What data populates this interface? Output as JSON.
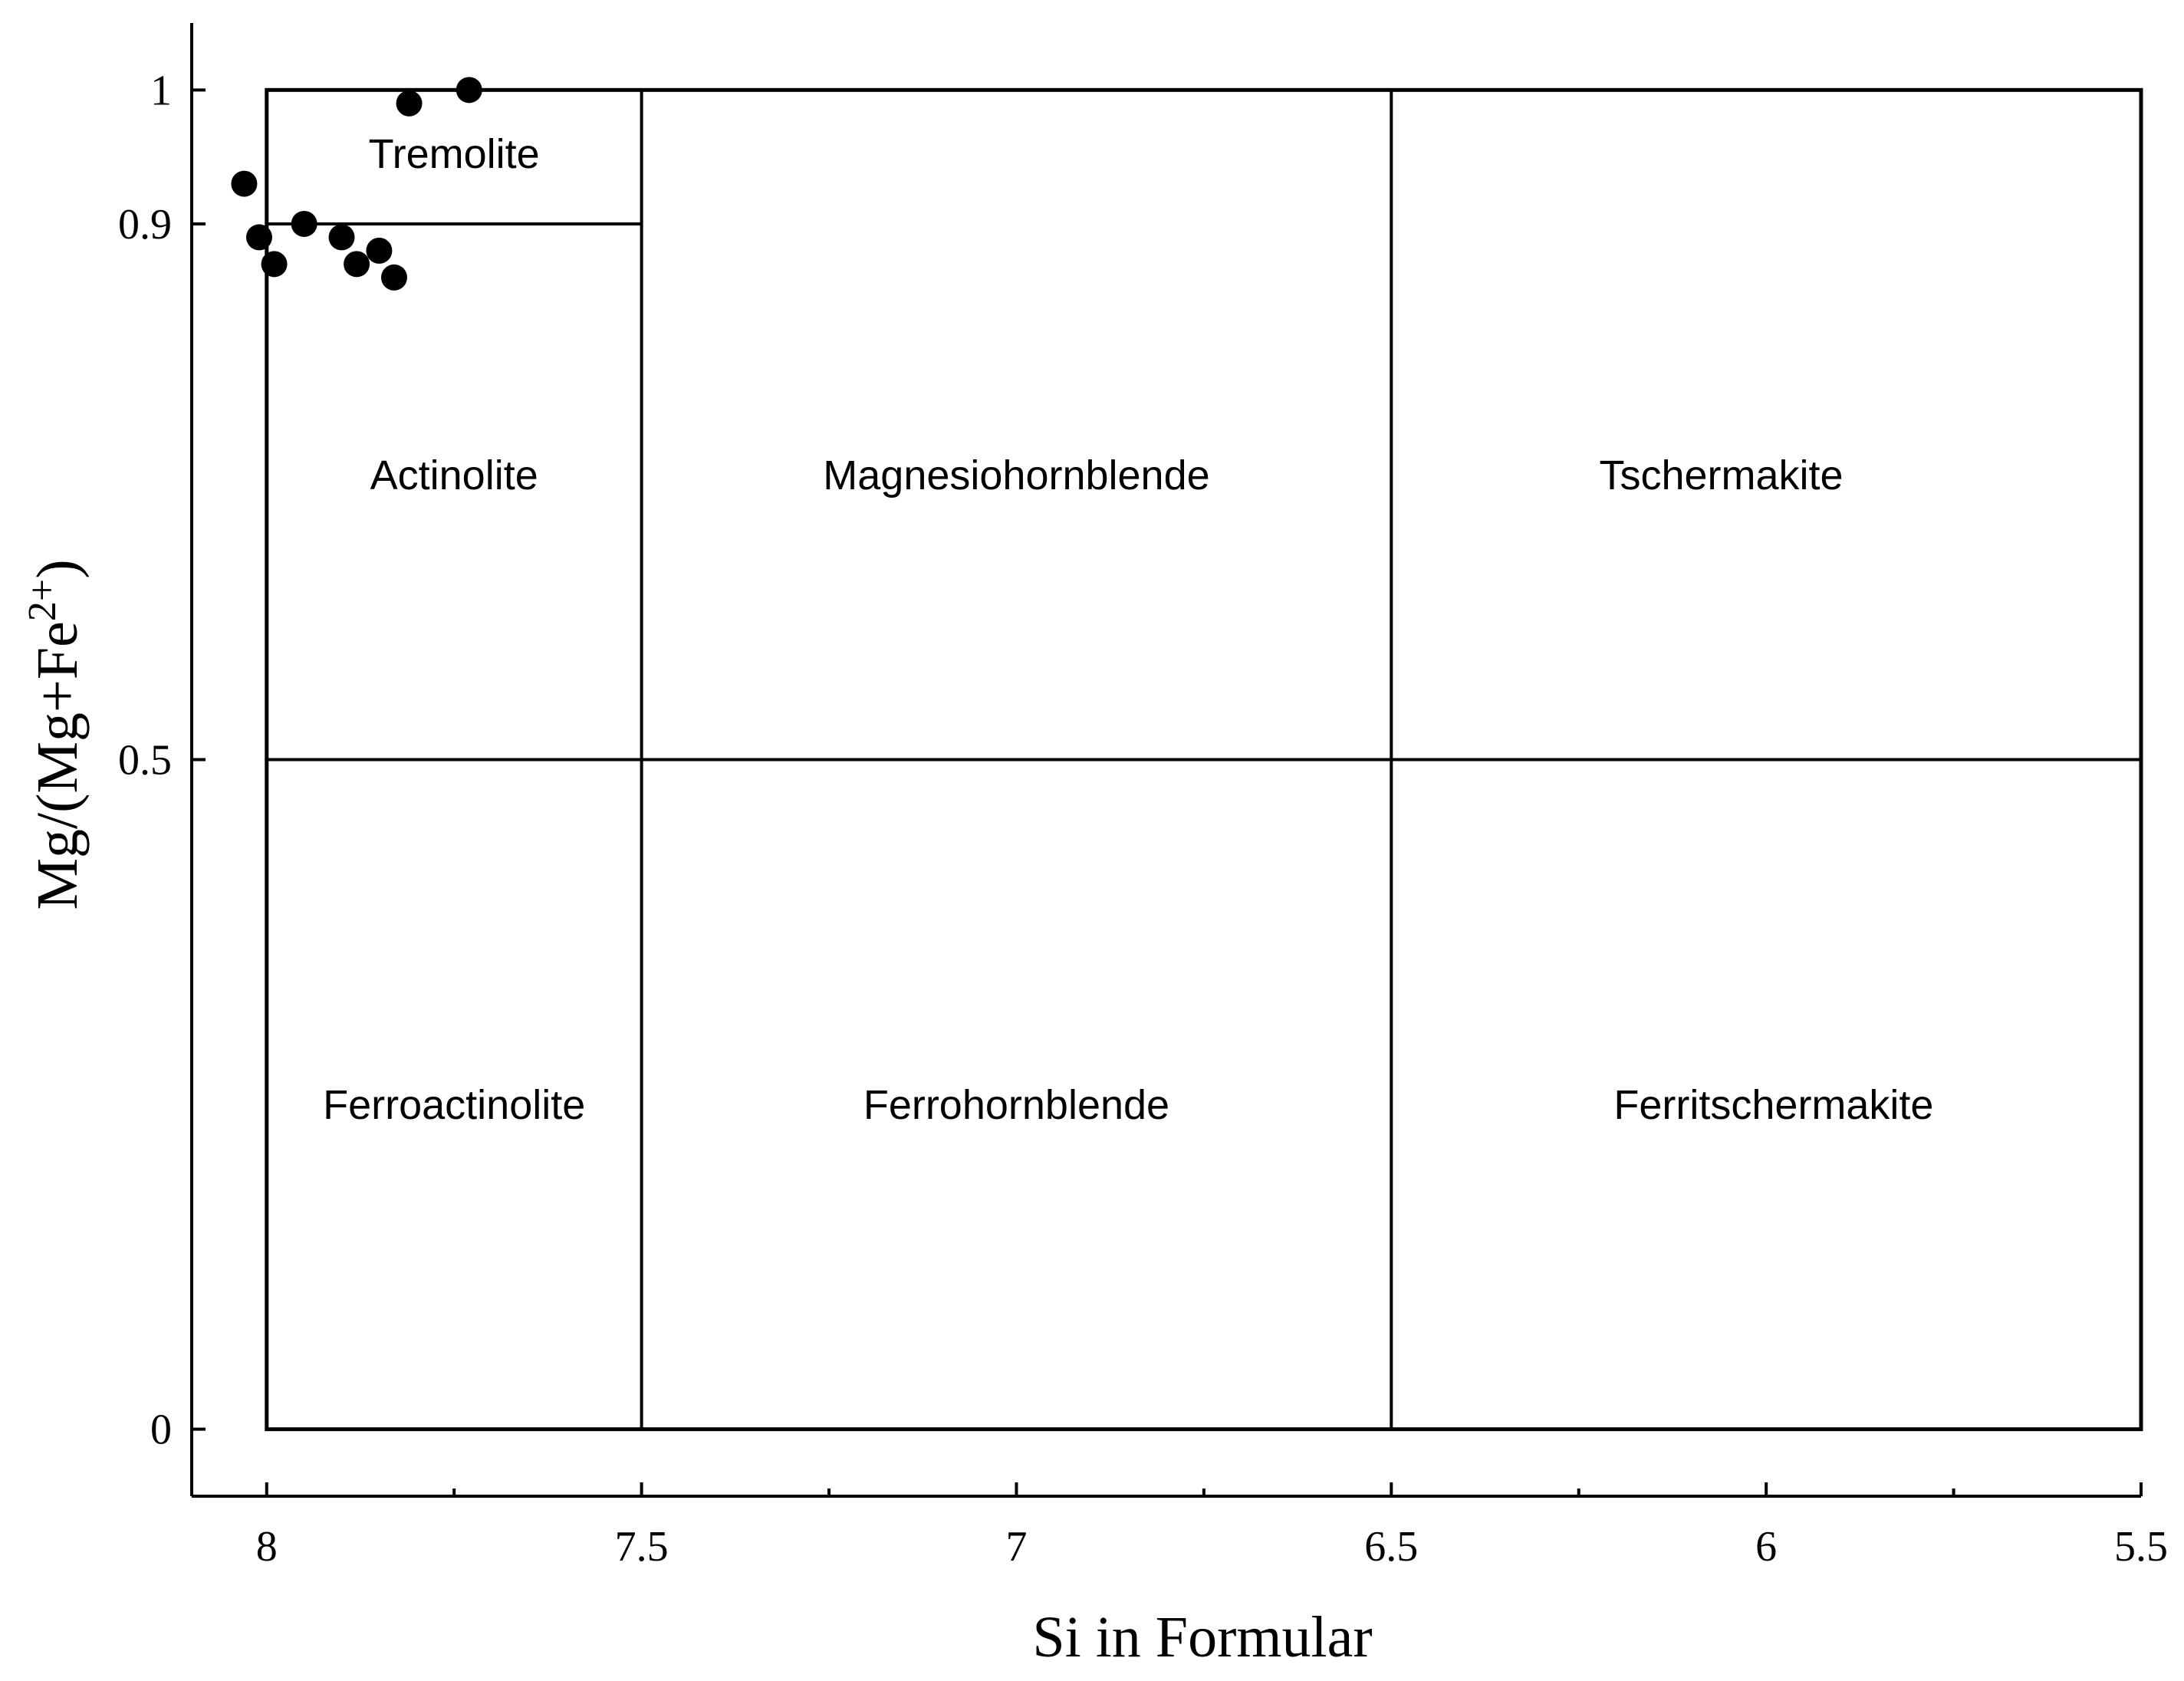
{
  "chart_data": {
    "type": "scatter",
    "title": "",
    "xlabel": "Si in Formular",
    "ylabel_parts": {
      "base": "Mg/(Mg+Fe",
      "superscript": "2+",
      "close": ")"
    },
    "xlim": [
      8.1,
      5.5
    ],
    "ylim": [
      -0.05,
      1.05
    ],
    "x_axis_reversed": true,
    "x_ticks": [
      {
        "value": 8,
        "label": "8"
      },
      {
        "value": 7.5,
        "label": "7.5"
      },
      {
        "value": 7,
        "label": "7"
      },
      {
        "value": 6.5,
        "label": "6.5"
      },
      {
        "value": 6,
        "label": "6"
      },
      {
        "value": 5.5,
        "label": "5.5"
      }
    ],
    "x_minor_ticks": [
      7.75,
      7.25,
      6.75,
      6.25,
      5.75
    ],
    "y_ticks": [
      {
        "value": 0,
        "label": "0"
      },
      {
        "value": 0.5,
        "label": "0.5"
      },
      {
        "value": 0.9,
        "label": "0.9"
      },
      {
        "value": 1,
        "label": "1"
      }
    ],
    "field_boundaries": {
      "frame": {
        "x": [
          8,
          5.5
        ],
        "y": [
          0,
          1
        ]
      },
      "vertical": [
        {
          "x": 7.5,
          "y": [
            0,
            1
          ]
        },
        {
          "x": 6.5,
          "y": [
            0,
            1
          ]
        }
      ],
      "horizontal": [
        {
          "y": 0.5,
          "x": [
            8,
            5.5
          ]
        },
        {
          "y": 0.9,
          "x": [
            8,
            7.5
          ]
        }
      ]
    },
    "fields": [
      {
        "name": "Tremolite",
        "x": 7.75,
        "y": 0.95
      },
      {
        "name": "Actinolite",
        "x": 7.75,
        "y": 0.71
      },
      {
        "name": "Magnesiohornblende",
        "x": 7.0,
        "y": 0.71
      },
      {
        "name": "Tschermakite",
        "x": 6.06,
        "y": 0.71
      },
      {
        "name": "Ferroactinolite",
        "x": 7.75,
        "y": 0.24
      },
      {
        "name": "Ferrohornblende",
        "x": 7.0,
        "y": 0.24
      },
      {
        "name": "Ferritschermakite",
        "x": 5.99,
        "y": 0.24
      }
    ],
    "series": [
      {
        "points": [
          {
            "x": 7.73,
            "y": 1.0
          },
          {
            "x": 7.81,
            "y": 0.99
          },
          {
            "x": 8.03,
            "y": 0.93
          },
          {
            "x": 8.01,
            "y": 0.89
          },
          {
            "x": 7.99,
            "y": 0.87
          },
          {
            "x": 7.95,
            "y": 0.9
          },
          {
            "x": 7.9,
            "y": 0.89
          },
          {
            "x": 7.88,
            "y": 0.87
          },
          {
            "x": 7.85,
            "y": 0.88
          },
          {
            "x": 7.83,
            "y": 0.86
          }
        ]
      }
    ],
    "grid": false,
    "legend": "none"
  }
}
